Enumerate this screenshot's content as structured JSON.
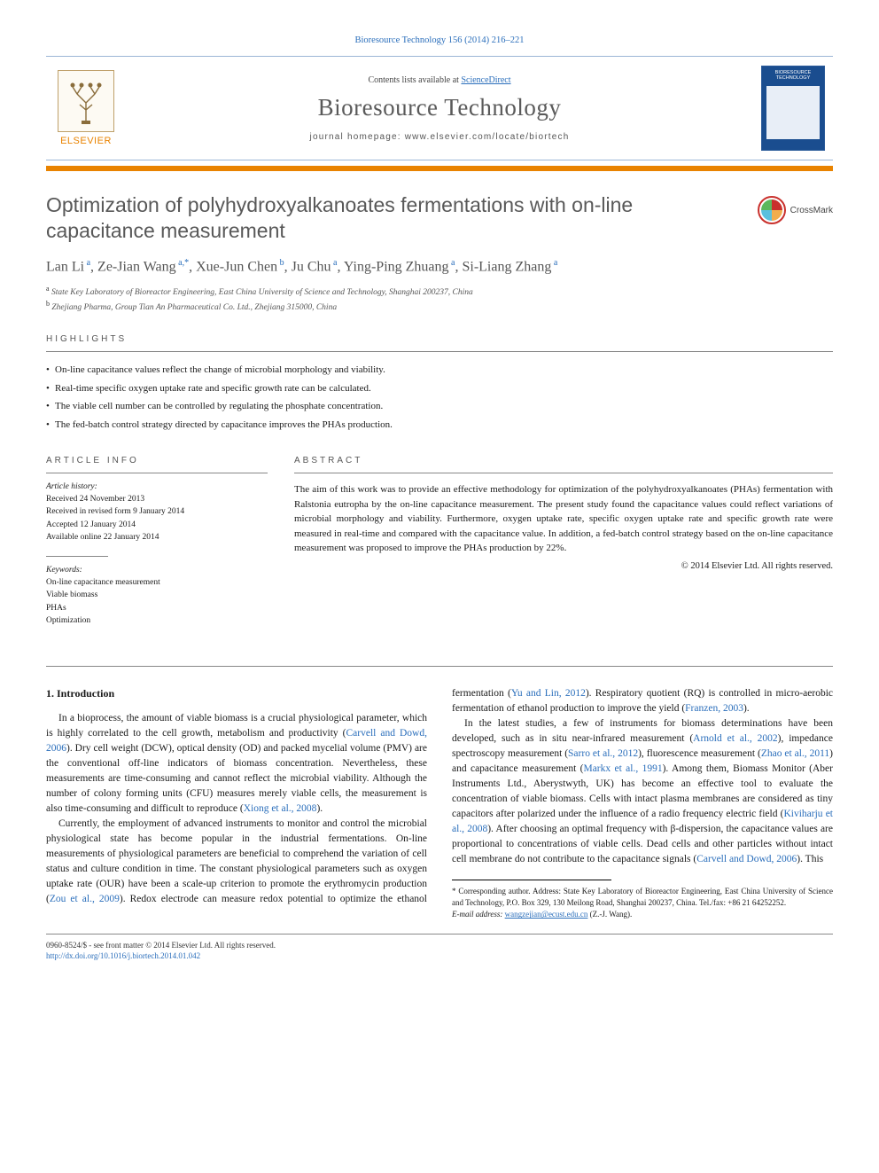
{
  "citation": "Bioresource Technology 156 (2014) 216–221",
  "header": {
    "contents_prefix": "Contents lists available at ",
    "contents_link": "ScienceDirect",
    "journal_name": "Bioresource Technology",
    "homepage_prefix": "journal homepage: ",
    "homepage_url": "www.elsevier.com/locate/biortech",
    "publisher": "ELSEVIER",
    "cover_title": "BIORESOURCE TECHNOLOGY"
  },
  "crossmark_label": "CrossMark",
  "title": "Optimization of polyhydroxyalkanoates fermentations with on-line capacitance measurement",
  "authors_html": "Lan Li<sup> a</sup>, Ze-Jian Wang<sup> a,*</sup>, Xue-Jun Chen<sup> b</sup>, Ju Chu<sup> a</sup>, Ying-Ping Zhuang<sup> a</sup>, Si-Liang Zhang<sup> a</sup>",
  "affiliations": {
    "a": "State Key Laboratory of Bioreactor Engineering, East China University of Science and Technology, Shanghai 200237, China",
    "b": "Zhejiang Pharma, Group Tian An Pharmaceutical Co. Ltd., Zhejiang 315000, China"
  },
  "labels": {
    "highlights": "HIGHLIGHTS",
    "article_info": "ARTICLE INFO",
    "abstract": "ABSTRACT",
    "history": "Article history:",
    "keywords": "Keywords:"
  },
  "highlights": [
    "On-line capacitance values reflect the change of microbial morphology and viability.",
    "Real-time specific oxygen uptake rate and specific growth rate can be calculated.",
    "The viable cell number can be controlled by regulating the phosphate concentration.",
    "The fed-batch control strategy directed by capacitance improves the PHAs production."
  ],
  "history": [
    "Received 24 November 2013",
    "Received in revised form 9 January 2014",
    "Accepted 12 January 2014",
    "Available online 22 January 2014"
  ],
  "keywords": [
    "On-line capacitance measurement",
    "Viable biomass",
    "PHAs",
    "Optimization"
  ],
  "abstract": "The aim of this work was to provide an effective methodology for optimization of the polyhydroxyalkanoates (PHAs) fermentation with Ralstonia eutropha by the on-line capacitance measurement. The present study found the capacitance values could reflect variations of microbial morphology and viability. Furthermore, oxygen uptake rate, specific oxygen uptake rate and specific growth rate were measured in real-time and compared with the capacitance value. In addition, a fed-batch control strategy based on the on-line capacitance measurement was proposed to improve the PHAs production by 22%.",
  "copyright": "© 2014 Elsevier Ltd. All rights reserved.",
  "intro_heading": "1. Introduction",
  "body_paragraphs": [
    "In a bioprocess, the amount of viable biomass is a crucial physiological parameter, which is highly correlated to the cell growth, metabolism and productivity (<a class='cite' href='#'>Carvell and Dowd, 2006</a>). Dry cell weight (DCW), optical density (OD) and packed mycelial volume (PMV) are the conventional off-line indicators of biomass concentration. Nevertheless, these measurements are time-consuming and cannot reflect the microbial viability. Although the number of colony forming units (CFU) measures merely viable cells, the measurement is also time-consuming and difficult to reproduce (<a class='cite' href='#'>Xiong et al., 2008</a>).",
    "Currently, the employment of advanced instruments to monitor and control the microbial physiological state has become popular in the industrial fermentations. On-line measurements of physiological parameters are beneficial to comprehend the variation of cell status and culture condition in time. The constant physiological parameters such as oxygen uptake rate (OUR) have been a scale-up criterion to promote the erythromycin production (<a class='cite' href='#'>Zou et al., 2009</a>). Redox electrode can measure redox potential to optimize the ethanol fermentation (<a class='cite' href='#'>Yu and Lin, 2012</a>). Respiratory quotient (RQ) is controlled in micro-aerobic fermentation of ethanol production to improve the yield (<a class='cite' href='#'>Franzen, 2003</a>).",
    "In the latest studies, a few of instruments for biomass determinations have been developed, such as in situ near-infrared measurement (<a class='cite' href='#'>Arnold et al., 2002</a>), impedance spectroscopy measurement (<a class='cite' href='#'>Sarro et al., 2012</a>), fluorescence measurement (<a class='cite' href='#'>Zhao et al., 2011</a>) and capacitance measurement (<a class='cite' href='#'>Markx et al., 1991</a>). Among them, Biomass Monitor (Aber Instruments Ltd., Aberystwyth, UK) has become an effective tool to evaluate the concentration of viable biomass. Cells with intact plasma membranes are considered as tiny capacitors after polarized under the influence of a radio frequency electric field (<a class='cite' href='#'>Kiviharju et al., 2008</a>). After choosing an optimal frequency with β-dispersion, the capacitance values are proportional to concentrations of viable cells. Dead cells and other particles without intact cell membrane do not contribute to the capacitance signals (<a class='cite' href='#'>Carvell and Dowd, 2006</a>). This"
  ],
  "footnote": {
    "corr": "* Corresponding author. Address: State Key Laboratory of Bioreactor Engineering, East China University of Science and Technology, P.O. Box 329, 130 Meilong Road, Shanghai 200237, China. Tel./fax: +86 21 64252252.",
    "email_label": "E-mail address:",
    "email": "wangzejian@ecust.edu.cn",
    "email_who": "(Z.-J. Wang)."
  },
  "footer": {
    "line1": "0960-8524/$ - see front matter © 2014 Elsevier Ltd. All rights reserved.",
    "doi": "http://dx.doi.org/10.1016/j.biortech.2014.01.042"
  },
  "colors": {
    "orange": "#e98300",
    "blue_link": "#2a6ebb",
    "band_border": "#9bb6d6",
    "cover_bg": "#1a4d8f"
  }
}
